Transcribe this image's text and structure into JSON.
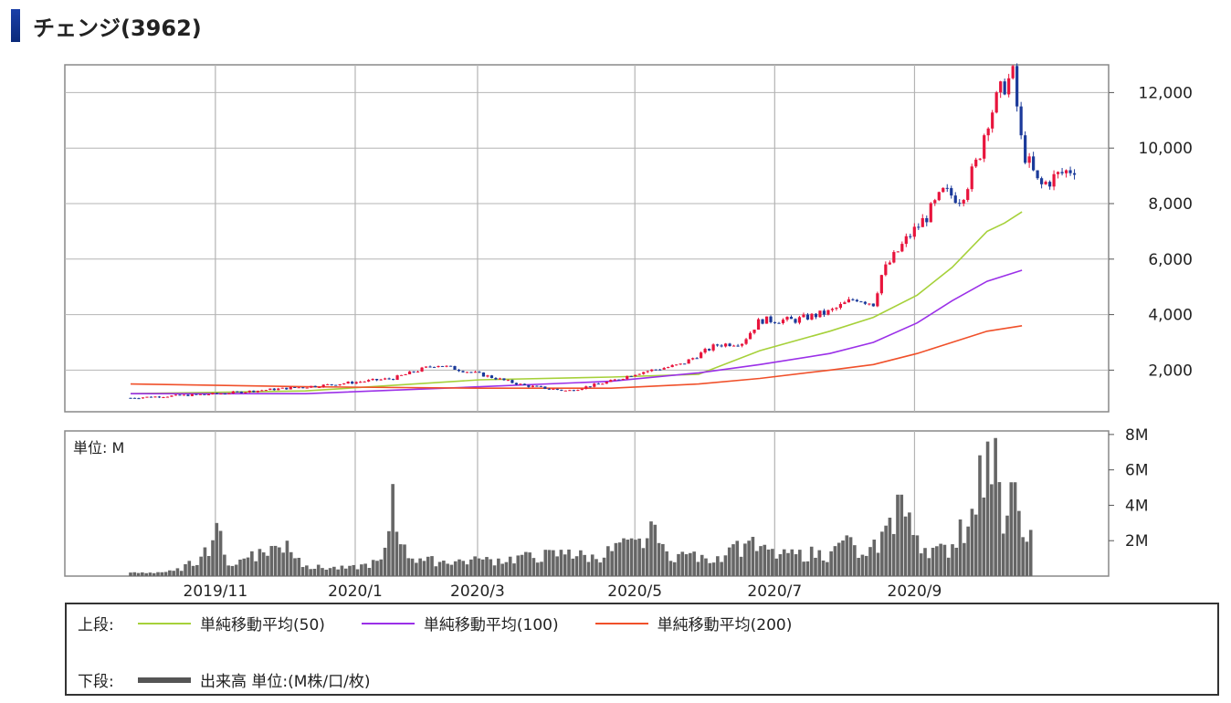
{
  "page": {
    "title": "チェンジ(3962)"
  },
  "colors": {
    "up": "#e8143c",
    "down": "#1b3a9a",
    "ma50": "#a6d13a",
    "ma100": "#9b30e8",
    "ma200": "#f0502a",
    "volume": "#666666",
    "grid": "#b4b4b4"
  },
  "chart_data": [
    {
      "type": "candlestick",
      "y_ticks": [
        "12,000",
        "10,000",
        "8,000",
        "6,000",
        "4,000",
        "2,000"
      ],
      "y_tick_values": [
        12000,
        10000,
        8000,
        6000,
        4000,
        2000
      ],
      "ylim": [
        500,
        13000
      ],
      "x_ticks": [
        "2019/11",
        "2020/1",
        "2020/3",
        "2020/5",
        "2020/7",
        "2020/9"
      ],
      "x_tick_values": [
        0.05,
        0.21,
        0.35,
        0.53,
        0.69,
        0.85
      ],
      "price_keypoints": [
        [
          0.0,
          1000
        ],
        [
          0.1,
          1150
        ],
        [
          0.22,
          1450
        ],
        [
          0.3,
          1700
        ],
        [
          0.35,
          2200
        ],
        [
          0.4,
          1850
        ],
        [
          0.45,
          1450
        ],
        [
          0.5,
          1250
        ],
        [
          0.55,
          1600
        ],
        [
          0.58,
          1900
        ],
        [
          0.63,
          2200
        ],
        [
          0.67,
          2900
        ],
        [
          0.7,
          3000
        ],
        [
          0.72,
          3800
        ],
        [
          0.76,
          3800
        ],
        [
          0.8,
          4100
        ],
        [
          0.83,
          4600
        ],
        [
          0.85,
          4400
        ],
        [
          0.86,
          5500
        ],
        [
          0.89,
          6800
        ],
        [
          0.91,
          7500
        ],
        [
          0.93,
          8400
        ],
        [
          0.95,
          8200
        ],
        [
          0.97,
          9600
        ],
        [
          0.98,
          11000
        ],
        [
          1.0,
          12300
        ],
        [
          1.01,
          12600
        ],
        [
          1.02,
          10000
        ],
        [
          1.04,
          8600
        ],
        [
          1.06,
          9000
        ],
        [
          1.08,
          9300
        ]
      ],
      "ma_series": [
        {
          "name": "単純移動平均(50)",
          "points": [
            [
              0.0,
              1150
            ],
            [
              0.2,
              1250
            ],
            [
              0.4,
              1650
            ],
            [
              0.55,
              1750
            ],
            [
              0.65,
              1850
            ],
            [
              0.72,
              2700
            ],
            [
              0.8,
              3400
            ],
            [
              0.85,
              3900
            ],
            [
              0.9,
              4700
            ],
            [
              0.94,
              5700
            ],
            [
              0.98,
              7000
            ],
            [
              1.0,
              7300
            ],
            [
              1.02,
              7700
            ]
          ]
        },
        {
          "name": "単純移動平均(100)",
          "points": [
            [
              0.0,
              1150
            ],
            [
              0.2,
              1150
            ],
            [
              0.4,
              1400
            ],
            [
              0.55,
              1600
            ],
            [
              0.65,
              1900
            ],
            [
              0.72,
              2200
            ],
            [
              0.8,
              2600
            ],
            [
              0.85,
              3000
            ],
            [
              0.9,
              3700
            ],
            [
              0.94,
              4500
            ],
            [
              0.98,
              5200
            ],
            [
              1.02,
              5600
            ]
          ]
        },
        {
          "name": "単純移動平均(200)",
          "points": [
            [
              0.0,
              1500
            ],
            [
              0.2,
              1400
            ],
            [
              0.4,
              1350
            ],
            [
              0.55,
              1350
            ],
            [
              0.65,
              1500
            ],
            [
              0.72,
              1700
            ],
            [
              0.8,
              2000
            ],
            [
              0.85,
              2200
            ],
            [
              0.9,
              2600
            ],
            [
              0.94,
              3000
            ],
            [
              0.98,
              3400
            ],
            [
              1.02,
              3600
            ]
          ]
        }
      ]
    },
    {
      "type": "bar",
      "unit_label": "単位: M",
      "y_ticks": [
        "8M",
        "6M",
        "4M",
        "2M"
      ],
      "y_tick_values": [
        8,
        6,
        4,
        2
      ],
      "ylim": [
        0,
        8.2
      ],
      "volume_keypoints": [
        [
          0.0,
          0.2
        ],
        [
          0.05,
          0.3
        ],
        [
          0.08,
          1.1
        ],
        [
          0.1,
          3.0
        ],
        [
          0.11,
          0.6
        ],
        [
          0.14,
          1.4
        ],
        [
          0.16,
          1.7
        ],
        [
          0.18,
          2.0
        ],
        [
          0.2,
          0.6
        ],
        [
          0.25,
          0.5
        ],
        [
          0.29,
          1.0
        ],
        [
          0.3,
          5.2
        ],
        [
          0.31,
          1.8
        ],
        [
          0.33,
          1.0
        ],
        [
          0.4,
          1.0
        ],
        [
          0.45,
          1.2
        ],
        [
          0.5,
          1.5
        ],
        [
          0.53,
          1.2
        ],
        [
          0.56,
          1.9
        ],
        [
          0.58,
          2.0
        ],
        [
          0.6,
          2.9
        ],
        [
          0.61,
          1.5
        ],
        [
          0.64,
          1.3
        ],
        [
          0.66,
          1.0
        ],
        [
          0.69,
          1.8
        ],
        [
          0.71,
          2.0
        ],
        [
          0.73,
          1.5
        ],
        [
          0.75,
          1.3
        ],
        [
          0.78,
          1.5
        ],
        [
          0.8,
          1.4
        ],
        [
          0.82,
          2.3
        ],
        [
          0.84,
          1.0
        ],
        [
          0.87,
          3.3
        ],
        [
          0.88,
          4.6
        ],
        [
          0.9,
          2.3
        ],
        [
          0.92,
          1.6
        ],
        [
          0.94,
          1.8
        ],
        [
          0.95,
          3.2
        ],
        [
          0.96,
          2.8
        ],
        [
          0.97,
          5.8
        ],
        [
          0.98,
          7.6
        ],
        [
          0.99,
          7.8
        ],
        [
          1.0,
          2.4
        ],
        [
          1.01,
          5.3
        ],
        [
          1.02,
          2.2
        ],
        [
          1.03,
          2.4
        ]
      ]
    }
  ],
  "legend": {
    "upper_label": "上段:",
    "lower_label": "下段:",
    "items": [
      {
        "label": "単純移動平均(50)"
      },
      {
        "label": "単純移動平均(100)"
      },
      {
        "label": "単純移動平均(200)"
      }
    ],
    "volume_label": "出来高 単位:(M株/口/枚)"
  }
}
